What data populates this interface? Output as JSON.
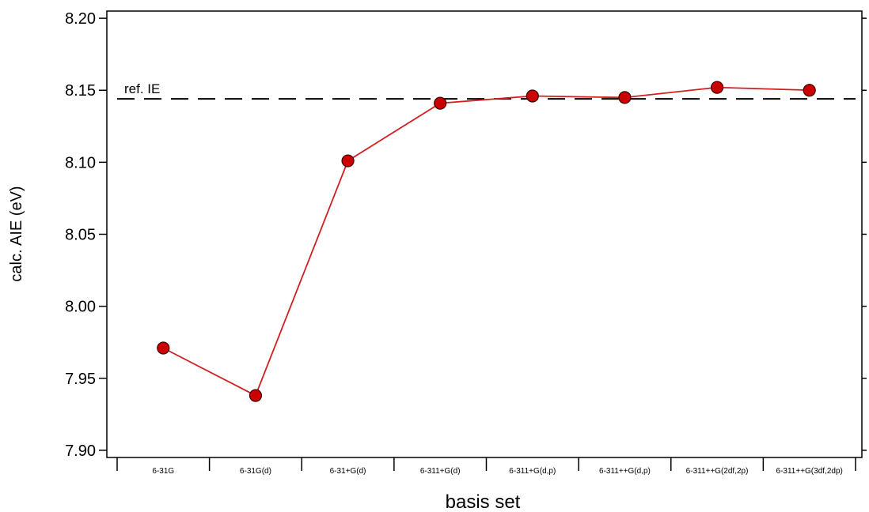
{
  "chart_data": {
    "type": "line",
    "xlabel": "basis set",
    "ylabel": "calc. AIE (eV)",
    "ylim": [
      7.895,
      8.205
    ],
    "yticks": [
      "7.90",
      "7.95",
      "8.00",
      "8.05",
      "8.10",
      "8.15",
      "8.20"
    ],
    "categories": [
      "6-31G",
      "6-31G(d)",
      "6-31+G(d)",
      "6-311+G(d)",
      "6-311+G(d,p)",
      "6-311++G(d,p)",
      "6-311++G(2df,2p)",
      "6-311++G(3df,2dp)"
    ],
    "series": [
      {
        "values": [
          7.971,
          7.938,
          8.101,
          8.141,
          8.146,
          8.145,
          8.152,
          8.15
        ],
        "color": "#cc0000",
        "line_color": "#d02020"
      }
    ],
    "reference": {
      "label": "ref. IE",
      "value": 8.144,
      "style": "dashed",
      "color": "#000000"
    },
    "grid": false,
    "legend": "none"
  }
}
